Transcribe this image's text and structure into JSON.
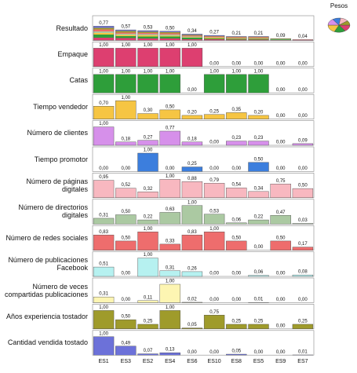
{
  "legend_title": "Pesos",
  "chart_data": [
    {
      "type": "bar",
      "title": "Resultado",
      "values": [
        0.77,
        0.57,
        0.53,
        0.5,
        0.34,
        0.27,
        0.21,
        0.21,
        0.09,
        0.04
      ],
      "value_labels": [
        "0,77",
        "0,57",
        "0,53",
        "0,50",
        "0,34",
        "0,27",
        "0,21",
        "0,21",
        "0,09",
        "0,04"
      ],
      "color": "url(#mix)",
      "ylim": [
        0,
        1
      ]
    },
    {
      "type": "bar",
      "title": "Empaque",
      "values": [
        1,
        1,
        1,
        1,
        1,
        0,
        0,
        0,
        0,
        0
      ],
      "value_labels": [
        "1,00",
        "1,00",
        "1,00",
        "1,00",
        "1,00",
        "0,00",
        "0,00",
        "0,00",
        "0,00",
        "0,00"
      ],
      "color": "#dd3f70",
      "ylim": [
        0,
        1
      ]
    },
    {
      "type": "bar",
      "title": "Catas",
      "values": [
        1,
        1,
        1,
        1,
        0,
        1,
        1,
        1,
        0,
        0
      ],
      "value_labels": [
        "1,00",
        "1,00",
        "1,00",
        "1,00",
        "0,00",
        "1,00",
        "1,00",
        "1,00",
        "0,00",
        "0,00"
      ],
      "color": "#2e9e3a",
      "ylim": [
        0,
        1
      ]
    },
    {
      "type": "bar",
      "title": "Tiempo vendedor",
      "values": [
        0.7,
        1,
        0.3,
        0.5,
        0.2,
        0.25,
        0.35,
        0.2,
        0,
        0
      ],
      "value_labels": [
        "0,70",
        "1,00",
        "0,30",
        "0,50",
        "0,20",
        "0,25",
        "0,35",
        "0,20",
        "0,00",
        "0,00"
      ],
      "color": "#f6c543",
      "ylim": [
        0,
        1
      ]
    },
    {
      "type": "bar",
      "title": "Número de clientes",
      "values": [
        1,
        0.18,
        0.27,
        0.77,
        0.18,
        0,
        0.23,
        0.23,
        0,
        0.09
      ],
      "value_labels": [
        "1,00",
        "0,18",
        "0,27",
        "0,77",
        "0,18",
        "0,00",
        "0,23",
        "0,23",
        "0,00",
        "0,09"
      ],
      "color": "#d690ea",
      "ylim": [
        0,
        1
      ]
    },
    {
      "type": "bar",
      "title": "Tiempo promotor",
      "values": [
        0,
        0,
        1,
        0,
        0.25,
        0,
        0,
        0.5,
        0,
        0
      ],
      "value_labels": [
        "0,00",
        "0,00",
        "1,00",
        "0,00",
        "0,25",
        "0,00",
        "0,00",
        "0,50",
        "0,00",
        "0,00"
      ],
      "color": "#3c7edd",
      "ylim": [
        0,
        1
      ]
    },
    {
      "type": "bar",
      "title": "Número de páginas digitales",
      "values": [
        0.95,
        0.52,
        0.32,
        1,
        0.88,
        0.79,
        0.54,
        0.34,
        0.75,
        0.5
      ],
      "value_labels": [
        "0,95",
        "0,52",
        "0,32",
        "1,00",
        "0,88",
        "0,79",
        "0,54",
        "0,34",
        "0,75",
        "0,50"
      ],
      "color": "#f8b8c0",
      "ylim": [
        0,
        1
      ]
    },
    {
      "type": "bar",
      "title": "Número de directorios digitales",
      "values": [
        0.31,
        0.5,
        0.22,
        0.63,
        1,
        0.53,
        0.06,
        0.22,
        0.47,
        0.03
      ],
      "value_labels": [
        "0,31",
        "0,50",
        "0,22",
        "0,63",
        "1,00",
        "0,53",
        "0,06",
        "0,22",
        "0,47",
        "0,03"
      ],
      "color": "#abc9a2",
      "ylim": [
        0,
        1
      ]
    },
    {
      "type": "bar",
      "title": "Número de redes sociales",
      "values": [
        0.83,
        0.5,
        1,
        0.33,
        0.83,
        1,
        0.5,
        0,
        0.5,
        0.17
      ],
      "value_labels": [
        "0,83",
        "0,50",
        "1,00",
        "0,33",
        "0,83",
        "1,00",
        "0,50",
        "0,00",
        "0,50",
        "0,17"
      ],
      "color": "#ee6d6d",
      "ylim": [
        0,
        1
      ]
    },
    {
      "type": "bar",
      "title": "Número de publicaciones Facebook",
      "values": [
        0.51,
        0,
        1,
        0.31,
        0.26,
        0,
        0,
        0.06,
        0,
        0.08
      ],
      "value_labels": [
        "0,51",
        "0,00",
        "1,00",
        "0,31",
        "0,26",
        "0,00",
        "0,00",
        "0,06",
        "0,00",
        "0,08"
      ],
      "color": "#b6f1f0",
      "ylim": [
        0,
        1
      ]
    },
    {
      "type": "bar",
      "title": "Número de veces compartidas publicaciones",
      "values": [
        0.31,
        0,
        0.11,
        1,
        0.02,
        0,
        0,
        0.01,
        0,
        0
      ],
      "value_labels": [
        "0,31",
        "0,00",
        "0,11",
        "1,00",
        "0,02",
        "0,00",
        "0,00",
        "0,01",
        "0,00",
        "0,00"
      ],
      "color": "#fdf5b2",
      "ylim": [
        0,
        1
      ]
    },
    {
      "type": "bar",
      "title": "Años experiencia tostador",
      "values": [
        1,
        0.5,
        0.25,
        1,
        0.05,
        0.75,
        0.25,
        0.25,
        0,
        0.25
      ],
      "value_labels": [
        "1,00",
        "0,50",
        "0,25",
        "1,00",
        "0,05",
        "0,75",
        "0,25",
        "0,25",
        "0,00",
        "0,25"
      ],
      "color": "#9f9b2b",
      "ylim": [
        0,
        1
      ]
    },
    {
      "type": "bar",
      "title": "Cantidad vendida tostado",
      "categories": [
        "ES1",
        "ES3",
        "ES2",
        "ES4",
        "ES6",
        "ES10",
        "ES8",
        "ES5",
        "ES9",
        "ES7"
      ],
      "values": [
        1,
        0.49,
        0.07,
        0.13,
        0,
        0,
        0.05,
        0,
        0,
        0.01
      ],
      "value_labels": [
        "1,00",
        "0,49",
        "0,07",
        "0,13",
        "0,00",
        "0,00",
        "0,05",
        "0,00",
        "0,00",
        "0,01"
      ],
      "color": "#6c71d9",
      "ylim": [
        0,
        1
      ]
    }
  ]
}
